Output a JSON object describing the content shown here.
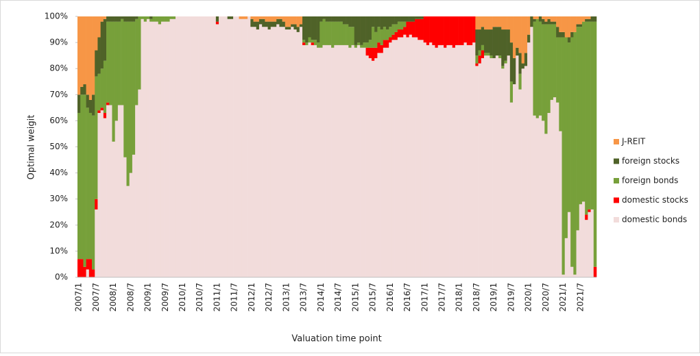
{
  "chart_data": {
    "type": "stacked_bar",
    "y_label": "Optimal weigit",
    "x_label": "Valuation time point",
    "legend_position": "right",
    "grid": false,
    "ylim": [
      0,
      100
    ],
    "yticks": [
      {
        "value": 0,
        "label": "0%"
      },
      {
        "value": 10,
        "label": "10%"
      },
      {
        "value": 20,
        "label": "20%"
      },
      {
        "value": 30,
        "label": "30%"
      },
      {
        "value": 40,
        "label": "40%"
      },
      {
        "value": 50,
        "label": "50%"
      },
      {
        "value": 60,
        "label": "60%"
      },
      {
        "value": 70,
        "label": "70%"
      },
      {
        "value": 80,
        "label": "80%"
      },
      {
        "value": 90,
        "label": "90%"
      },
      {
        "value": 100,
        "label": "100%"
      }
    ],
    "categories": [
      "2007/1",
      null,
      null,
      null,
      null,
      null,
      "2007/7",
      null,
      null,
      null,
      null,
      null,
      "2008/1",
      null,
      null,
      null,
      null,
      null,
      "2008/7",
      null,
      null,
      null,
      null,
      null,
      "2009/1",
      null,
      null,
      null,
      null,
      null,
      "2009/7",
      null,
      null,
      null,
      null,
      null,
      "2010/1",
      null,
      null,
      null,
      null,
      null,
      "2010/7",
      null,
      null,
      null,
      null,
      null,
      "2011/1",
      null,
      null,
      null,
      null,
      null,
      "2011/7",
      null,
      null,
      null,
      null,
      null,
      "2012/1",
      null,
      null,
      null,
      null,
      null,
      "2012/7",
      null,
      null,
      null,
      null,
      null,
      "2013/1",
      null,
      null,
      null,
      null,
      null,
      "2013/7",
      null,
      null,
      null,
      null,
      null,
      "2014/1",
      null,
      null,
      null,
      null,
      null,
      "2014/7",
      null,
      null,
      null,
      null,
      null,
      "2015/1",
      null,
      null,
      null,
      null,
      null,
      "2015/7",
      null,
      null,
      null,
      null,
      null,
      "2016/1",
      null,
      null,
      null,
      null,
      null,
      "2016/7",
      null,
      null,
      null,
      null,
      null,
      "2017/1",
      null,
      null,
      null,
      null,
      null,
      "2017/7",
      null,
      null,
      null,
      null,
      null,
      "2018/1",
      null,
      null,
      null,
      null,
      null,
      "2018/7",
      null,
      null,
      null,
      null,
      null,
      "2019/1",
      null,
      null,
      null,
      null,
      null,
      "2019/7",
      null,
      null,
      null,
      null,
      null,
      "2020/1",
      null,
      null,
      null,
      null,
      null,
      "2020/7",
      null,
      null,
      null,
      null,
      null,
      "2021/1",
      null,
      null,
      null,
      null,
      null,
      "2021/7",
      null,
      null,
      null,
      null,
      null
    ],
    "series": [
      {
        "name": "domestic bonds",
        "color": "#f2dcdb",
        "values": [
          0,
          0,
          0,
          3,
          0,
          0,
          26,
          63,
          64,
          61,
          66,
          66,
          52,
          60,
          66,
          66,
          46,
          35,
          40,
          47,
          66,
          72,
          99,
          98,
          99,
          98,
          98,
          98,
          97,
          98,
          98,
          98,
          99,
          99,
          100,
          100,
          100,
          100,
          100,
          100,
          100,
          100,
          100,
          100,
          100,
          100,
          100,
          100,
          97,
          100,
          100,
          100,
          99,
          99,
          100,
          100,
          99,
          99,
          99,
          100,
          96,
          96,
          95,
          97,
          96,
          96,
          95,
          96,
          96,
          97,
          96,
          96,
          95,
          95,
          96,
          95,
          94,
          96,
          89,
          89,
          90,
          89,
          89,
          88,
          88,
          89,
          89,
          89,
          88,
          89,
          89,
          89,
          89,
          89,
          88,
          89,
          88,
          89,
          88,
          88,
          85,
          84,
          83,
          84,
          86,
          86,
          88,
          88,
          90,
          91,
          91,
          92,
          92,
          93,
          92,
          93,
          92,
          92,
          91,
          91,
          90,
          89,
          90,
          89,
          88,
          89,
          89,
          88,
          89,
          89,
          88,
          89,
          89,
          89,
          90,
          89,
          89,
          90,
          81,
          82,
          84,
          85,
          85,
          84,
          84,
          85,
          84,
          80,
          82,
          85,
          67,
          74,
          85,
          72,
          80,
          81,
          90,
          96,
          62,
          61,
          62,
          60,
          55,
          63,
          68,
          69,
          67,
          56,
          1,
          15,
          25,
          4,
          1,
          18,
          28,
          29,
          22,
          25,
          26,
          0
        ]
      },
      {
        "name": "domestic stocks",
        "color": "#ff0000",
        "values": [
          7,
          7,
          4,
          4,
          7,
          3,
          4,
          1,
          1,
          2,
          1,
          0,
          0,
          0,
          0,
          0,
          0,
          0,
          0,
          0,
          0,
          0,
          0,
          0,
          0,
          0,
          0,
          0,
          0,
          0,
          0,
          0,
          0,
          0,
          0,
          0,
          0,
          0,
          0,
          0,
          0,
          0,
          0,
          0,
          0,
          0,
          0,
          0,
          1,
          0,
          0,
          0,
          0,
          0,
          0,
          0,
          0,
          0,
          0,
          0,
          0,
          0,
          0,
          0,
          0,
          0,
          0,
          0,
          0,
          0,
          0,
          0,
          0,
          0,
          0,
          0,
          0,
          0,
          1,
          0,
          0,
          1,
          0,
          0,
          0,
          0,
          0,
          0,
          0,
          0,
          0,
          0,
          0,
          0,
          0,
          0,
          0,
          0,
          0,
          0,
          3,
          4,
          5,
          4,
          4,
          3,
          3,
          3,
          2,
          2,
          3,
          3,
          3,
          3,
          6,
          5,
          6,
          7,
          8,
          8,
          10,
          11,
          10,
          11,
          12,
          11,
          11,
          12,
          11,
          11,
          12,
          11,
          11,
          11,
          10,
          11,
          11,
          10,
          1,
          3,
          3,
          0,
          0,
          0,
          0,
          0,
          0,
          0,
          0,
          0,
          0,
          0,
          0,
          0,
          0,
          0,
          0,
          0,
          0,
          0,
          0,
          0,
          0,
          0,
          0,
          0,
          0,
          0,
          0,
          0,
          0,
          0,
          0,
          0,
          0,
          0,
          2,
          1,
          0,
          4
        ]
      },
      {
        "name": "foreign bonds",
        "color": "#77a03a",
        "values": [
          56,
          63,
          66,
          58,
          56,
          59,
          47,
          14,
          15,
          20,
          31,
          32,
          46,
          38,
          32,
          33,
          52,
          63,
          58,
          51,
          33,
          28,
          1,
          2,
          1,
          1,
          2,
          2,
          3,
          2,
          2,
          2,
          1,
          1,
          0,
          0,
          0,
          0,
          0,
          0,
          0,
          0,
          0,
          0,
          0,
          0,
          0,
          0,
          0,
          0,
          0,
          0,
          0,
          0,
          0,
          0,
          0,
          0,
          0,
          0,
          0,
          0,
          0,
          0,
          0,
          0,
          0,
          0,
          0,
          0,
          0,
          0,
          0,
          0,
          0,
          0,
          0,
          0,
          1,
          1,
          2,
          1,
          2,
          2,
          10,
          10,
          9,
          9,
          10,
          9,
          9,
          9,
          8,
          8,
          8,
          7,
          1,
          1,
          1,
          2,
          2,
          3,
          8,
          6,
          6,
          6,
          5,
          4,
          4,
          4,
          3,
          3,
          3,
          2,
          0,
          0,
          0,
          0,
          0,
          0,
          0,
          0,
          0,
          0,
          0,
          0,
          0,
          0,
          0,
          0,
          0,
          0,
          0,
          0,
          0,
          0,
          0,
          0,
          3,
          2,
          2,
          1,
          1,
          1,
          0,
          0,
          1,
          1,
          1,
          0,
          8,
          0,
          0,
          6,
          0,
          0,
          0,
          0,
          36,
          38,
          36,
          37,
          42,
          34,
          29,
          28,
          25,
          36,
          91,
          77,
          65,
          88,
          93,
          78,
          68,
          69,
          74,
          72,
          72,
          94
        ]
      },
      {
        "name": "foreign stocks",
        "color": "#4f6228",
        "values": [
          7,
          3,
          4,
          5,
          5,
          8,
          10,
          14,
          18,
          16,
          2,
          2,
          2,
          2,
          2,
          1,
          2,
          2,
          2,
          2,
          1,
          0,
          0,
          0,
          0,
          1,
          0,
          0,
          0,
          0,
          0,
          0,
          0,
          0,
          0,
          0,
          0,
          0,
          0,
          0,
          0,
          0,
          0,
          0,
          0,
          0,
          0,
          0,
          2,
          0,
          0,
          0,
          1,
          1,
          0,
          0,
          0,
          0,
          0,
          0,
          3,
          2,
          3,
          2,
          3,
          2,
          3,
          2,
          2,
          2,
          3,
          2,
          1,
          1,
          1,
          2,
          2,
          1,
          9,
          10,
          8,
          9,
          9,
          10,
          2,
          1,
          2,
          2,
          2,
          2,
          2,
          2,
          3,
          3,
          4,
          4,
          11,
          10,
          11,
          10,
          10,
          9,
          4,
          6,
          4,
          5,
          4,
          5,
          4,
          3,
          3,
          2,
          2,
          2,
          2,
          2,
          2,
          1,
          1,
          1,
          0,
          0,
          0,
          0,
          0,
          0,
          0,
          0,
          0,
          0,
          0,
          0,
          0,
          0,
          0,
          0,
          0,
          0,
          10,
          8,
          7,
          9,
          9,
          10,
          12,
          11,
          11,
          14,
          12,
          10,
          15,
          10,
          3,
          8,
          2,
          5,
          3,
          4,
          1,
          0,
          2,
          2,
          1,
          2,
          1,
          1,
          4,
          2,
          2,
          0,
          2,
          2,
          0,
          1,
          1,
          0,
          1,
          1,
          2,
          2
        ]
      },
      {
        "name": "J-REIT",
        "color": "#f79646",
        "values": [
          30,
          27,
          26,
          30,
          32,
          30,
          13,
          8,
          2,
          1,
          0,
          0,
          0,
          0,
          0,
          0,
          0,
          0,
          0,
          0,
          0,
          0,
          0,
          0,
          0,
          0,
          0,
          0,
          0,
          0,
          0,
          0,
          0,
          0,
          0,
          0,
          0,
          0,
          0,
          0,
          0,
          0,
          0,
          0,
          0,
          0,
          0,
          0,
          0,
          0,
          0,
          0,
          0,
          0,
          0,
          0,
          1,
          1,
          1,
          0,
          1,
          2,
          2,
          1,
          1,
          2,
          2,
          2,
          2,
          1,
          1,
          2,
          4,
          4,
          3,
          3,
          4,
          3,
          0,
          0,
          0,
          0,
          0,
          0,
          0,
          0,
          0,
          0,
          0,
          0,
          0,
          0,
          0,
          0,
          0,
          0,
          0,
          0,
          0,
          0,
          0,
          0,
          0,
          0,
          0,
          0,
          0,
          0,
          0,
          0,
          0,
          0,
          0,
          0,
          0,
          0,
          0,
          0,
          0,
          0,
          0,
          0,
          0,
          0,
          0,
          0,
          0,
          0,
          0,
          0,
          0,
          0,
          0,
          0,
          0,
          0,
          0,
          0,
          5,
          5,
          4,
          5,
          5,
          5,
          4,
          4,
          4,
          5,
          5,
          5,
          10,
          16,
          12,
          14,
          18,
          14,
          7,
          0,
          1,
          1,
          0,
          1,
          2,
          1,
          2,
          2,
          4,
          6,
          6,
          8,
          8,
          6,
          6,
          3,
          3,
          2,
          1,
          1,
          0,
          0
        ]
      }
    ]
  }
}
